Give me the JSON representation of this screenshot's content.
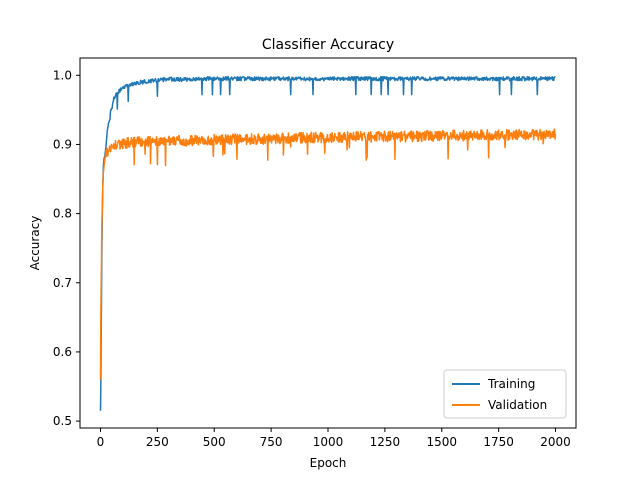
{
  "chart_data": {
    "type": "line",
    "title": "Classifier Accuracy",
    "xlabel": "Epoch",
    "ylabel": "Accuracy",
    "xlim": [
      -90,
      2090
    ],
    "ylim": [
      0.49,
      1.025
    ],
    "x_ticks": [
      0,
      250,
      500,
      750,
      1000,
      1250,
      1500,
      1750,
      2000
    ],
    "y_ticks": [
      0.5,
      0.6,
      0.7,
      0.8,
      0.9,
      1.0
    ],
    "y_tick_labels": [
      "0.5",
      "0.6",
      "0.7",
      "0.8",
      "0.9",
      "1.0"
    ],
    "grid": false,
    "legend_position": "lower-right",
    "series": [
      {
        "name": "Training",
        "color": "#1f77b4",
        "x": [
          0,
          2,
          4,
          6,
          8,
          10,
          13,
          16,
          20,
          25,
          30,
          35,
          40,
          45,
          50,
          55,
          60,
          70,
          80,
          90,
          100,
          120,
          140,
          160,
          180,
          200,
          230,
          260,
          280,
          300,
          350,
          400,
          450,
          500,
          550,
          600,
          650,
          700,
          745,
          800,
          900,
          1000,
          1100,
          1200,
          1300,
          1400,
          1500,
          1600,
          1700,
          1800,
          1900,
          2000
        ],
        "y": [
          0.515,
          0.56,
          0.66,
          0.74,
          0.8,
          0.84,
          0.87,
          0.88,
          0.885,
          0.9,
          0.92,
          0.93,
          0.935,
          0.95,
          0.955,
          0.965,
          0.97,
          0.975,
          0.98,
          0.983,
          0.985,
          0.988,
          0.99,
          0.992,
          0.993,
          0.994,
          0.995,
          0.996,
          0.997,
          0.997,
          0.997,
          0.997,
          0.998,
          0.998,
          0.998,
          0.998,
          0.998,
          0.998,
          0.998,
          0.998,
          0.998,
          0.998,
          0.998,
          0.998,
          0.998,
          0.998,
          0.998,
          0.998,
          0.998,
          0.998,
          0.998,
          0.998
        ]
      },
      {
        "name": "Validation",
        "color": "#ff7f0e",
        "x": [
          0,
          2,
          4,
          6,
          8,
          10,
          13,
          16,
          20,
          25,
          30,
          40,
          50,
          60,
          80,
          100,
          150,
          200,
          250,
          300,
          400,
          500,
          590,
          600,
          700,
          745,
          750,
          800,
          900,
          1000,
          1100,
          1200,
          1300,
          1400,
          1500,
          1600,
          1700,
          1800,
          1900,
          2000
        ],
        "y": [
          0.56,
          0.66,
          0.72,
          0.78,
          0.81,
          0.84,
          0.86,
          0.87,
          0.88,
          0.885,
          0.89,
          0.895,
          0.898,
          0.9,
          0.901,
          0.902,
          0.903,
          0.904,
          0.905,
          0.905,
          0.906,
          0.907,
          0.908,
          0.908,
          0.908,
          0.908,
          0.909,
          0.909,
          0.91,
          0.91,
          0.911,
          0.911,
          0.912,
          0.912,
          0.913,
          0.913,
          0.914,
          0.914,
          0.914,
          0.915
        ]
      }
    ]
  }
}
